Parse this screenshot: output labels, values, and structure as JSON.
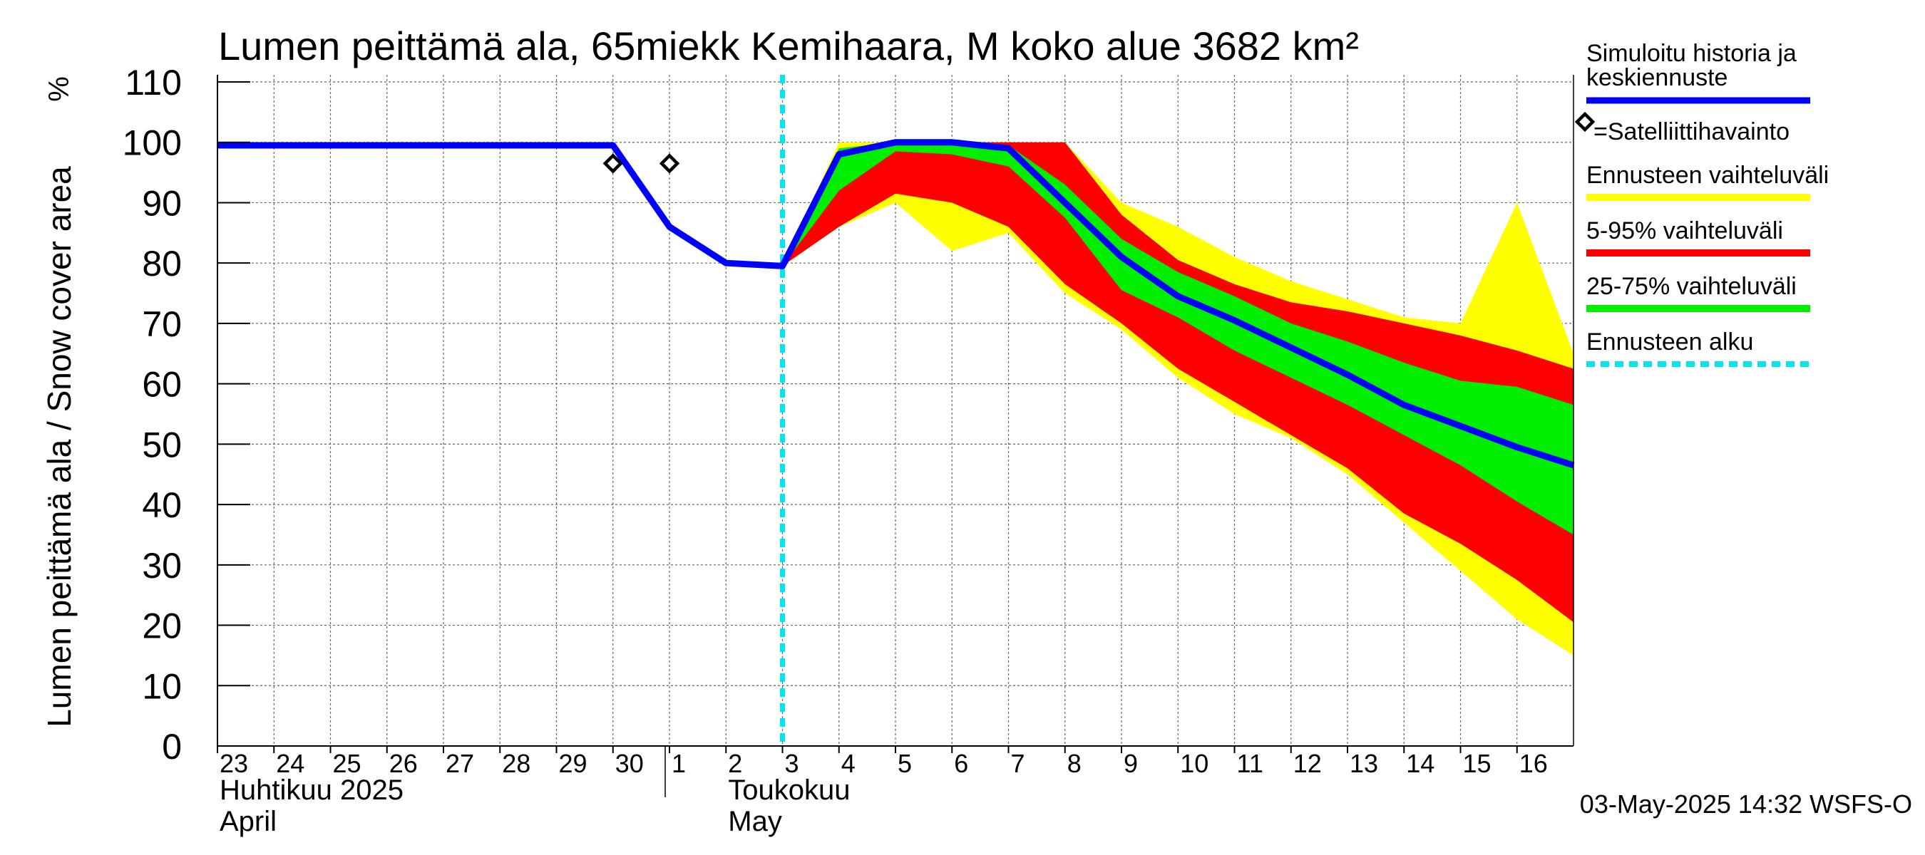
{
  "chart_data": {
    "type": "area",
    "title": "Lumen peittämä ala, 65miekk Kemihaara, M koko alue 3682 km²",
    "ylabel": "Lumen peittämä ala / Snow cover area",
    "yunit": "%",
    "ylim": [
      0,
      110
    ],
    "yticks": [
      0,
      10,
      20,
      30,
      40,
      50,
      60,
      70,
      80,
      90,
      100,
      110
    ],
    "xlim": [
      0,
      24
    ],
    "x_tick_labels": [
      {
        "x": 0,
        "label": "23"
      },
      {
        "x": 1,
        "label": "24"
      },
      {
        "x": 2,
        "label": "25"
      },
      {
        "x": 3,
        "label": "26"
      },
      {
        "x": 4,
        "label": "27"
      },
      {
        "x": 5,
        "label": "28"
      },
      {
        "x": 6,
        "label": "29"
      },
      {
        "x": 7,
        "label": "30"
      },
      {
        "x": 8,
        "label": "1"
      },
      {
        "x": 9,
        "label": "2"
      },
      {
        "x": 10,
        "label": "3"
      },
      {
        "x": 11,
        "label": "4"
      },
      {
        "x": 12,
        "label": "5"
      },
      {
        "x": 13,
        "label": "6"
      },
      {
        "x": 14,
        "label": "7"
      },
      {
        "x": 15,
        "label": "8"
      },
      {
        "x": 16,
        "label": "9"
      },
      {
        "x": 17,
        "label": "10"
      },
      {
        "x": 18,
        "label": "11"
      },
      {
        "x": 19,
        "label": "12"
      },
      {
        "x": 20,
        "label": "13"
      },
      {
        "x": 21,
        "label": "14"
      },
      {
        "x": 22,
        "label": "15"
      },
      {
        "x": 23,
        "label": "16"
      }
    ],
    "month_labels": [
      {
        "x": 0,
        "line1": "Huhtikuu  2025",
        "line2": "April"
      },
      {
        "x": 9,
        "line1": "Toukokuu",
        "line2": "May"
      }
    ],
    "month_boundary_x": 8,
    "forecast_start_x": 10,
    "series": [
      {
        "name": "Ennusteen vaihteluväli",
        "kind": "band",
        "color": "#ffff00",
        "x": [
          10,
          11,
          12,
          13,
          14,
          15,
          16,
          17,
          18,
          19,
          20,
          21,
          22,
          23,
          24
        ],
        "upper": [
          79.5,
          100,
          100,
          100,
          100,
          100,
          90,
          86,
          81,
          77,
          74,
          71,
          70,
          90,
          65
        ],
        "lower": [
          79.5,
          86,
          90,
          82,
          85,
          75,
          69,
          61,
          55,
          51,
          45,
          37,
          29,
          21,
          15
        ]
      },
      {
        "name": "5-95% vaihteluväli",
        "kind": "band",
        "color": "#ff0000",
        "x": [
          10,
          11,
          12,
          13,
          14,
          15,
          16,
          17,
          18,
          19,
          20,
          21,
          22,
          23,
          24
        ],
        "upper": [
          79.5,
          99,
          100,
          100,
          100,
          100,
          88,
          80.5,
          76.5,
          73.5,
          72,
          70,
          68,
          65.5,
          62.5
        ],
        "lower": [
          79.5,
          86,
          91.5,
          90,
          86,
          76.5,
          70,
          62.5,
          57,
          51.5,
          46,
          38.5,
          33.5,
          27.5,
          20.5
        ]
      },
      {
        "name": "25-75% vaihteluväli",
        "kind": "band",
        "color": "#00ee00",
        "x": [
          10,
          11,
          12,
          13,
          14,
          15,
          16,
          17,
          18,
          19,
          20,
          21,
          22,
          23,
          24
        ],
        "upper": [
          79.5,
          99,
          100,
          100,
          99.5,
          93,
          84,
          78.5,
          74.5,
          70,
          67,
          63.5,
          60.5,
          59.5,
          56.5
        ],
        "lower": [
          79.5,
          92,
          98.5,
          98,
          96,
          87.5,
          75.5,
          71,
          65.5,
          61,
          56.5,
          51.5,
          46.5,
          40.5,
          35
        ]
      },
      {
        "name": "Simuloitu historia ja keskiennuste",
        "kind": "line",
        "color": "#0000ff",
        "x": [
          0,
          1,
          2,
          3,
          4,
          5,
          6,
          7,
          8,
          9,
          10,
          11,
          12,
          13,
          14,
          15,
          16,
          17,
          18,
          19,
          20,
          21,
          22,
          23,
          24
        ],
        "values": [
          99.5,
          99.5,
          99.5,
          99.5,
          99.5,
          99.5,
          99.5,
          99.5,
          86,
          80,
          79.5,
          98,
          100,
          100,
          99,
          90,
          81,
          74.5,
          70.5,
          66,
          61.5,
          56.5,
          53,
          49.5,
          46.5
        ]
      },
      {
        "name": "=Satelliittihavainto",
        "kind": "points",
        "color": "#000000",
        "x": [
          7,
          8
        ],
        "values": [
          96.5,
          96.5
        ]
      }
    ],
    "legend": {
      "placement": "right",
      "entries": [
        {
          "label": "Simuloitu historia ja keskiennuste",
          "line1": "Simuloitu historia ja",
          "line2": "keskiennuste",
          "symbol": "line",
          "color": "#0000ff"
        },
        {
          "label": "=Satelliittihavainto",
          "symbol": "diamond",
          "color": "#000000"
        },
        {
          "label": "Ennusteen vaihteluväli",
          "symbol": "line",
          "color": "#ffff00"
        },
        {
          "label": "5-95% vaihteluväli",
          "symbol": "line",
          "color": "#ff0000"
        },
        {
          "label": "25-75% vaihteluväli",
          "symbol": "line",
          "color": "#00ee00"
        },
        {
          "label": "Ennusteen alku",
          "symbol": "dashed",
          "color": "#00e5ee"
        }
      ]
    },
    "timestamp": "03-May-2025 14:32 WSFS-O",
    "grid": true
  }
}
